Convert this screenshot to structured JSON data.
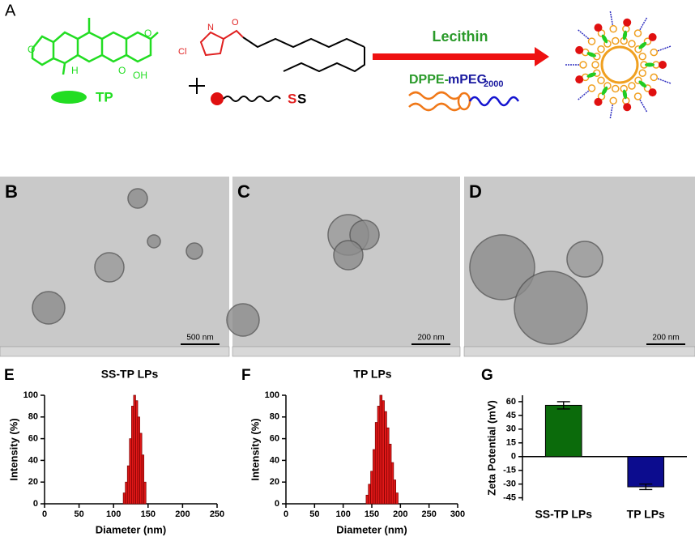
{
  "panel_labels": [
    "A",
    "B",
    "C",
    "D",
    "E",
    "F",
    "G"
  ],
  "scheme": {
    "tp_label": "TP",
    "ss_label": [
      "S",
      "S"
    ],
    "arrow_label": "Lecithin",
    "peg_label": [
      "DPPE-",
      "mPEG",
      "2000"
    ],
    "atom_labels": [
      "O",
      "O",
      "O",
      "H",
      "OH",
      "Cl",
      "N",
      "O"
    ]
  },
  "micrographs": [
    {
      "scale_bar": "500 nm"
    },
    {
      "scale_bar": "200 nm"
    },
    {
      "scale_bar": "200 nm"
    }
  ],
  "chart_data": [
    {
      "type": "histogram",
      "title": "SS-TP LPs",
      "xlabel": "Diameter (nm)",
      "ylabel": "Intensity (%)",
      "color": "#e01818",
      "bins": [
        114,
        117,
        120,
        123,
        126,
        129,
        132,
        135,
        138,
        141,
        144,
        147
      ],
      "values": [
        10,
        20,
        35,
        60,
        90,
        100,
        95,
        80,
        65,
        45,
        20
      ],
      "xlim": [
        0,
        250
      ],
      "xticks": [
        0,
        50,
        100,
        150,
        200,
        250
      ],
      "ylim": [
        0,
        100
      ],
      "yticks": [
        0,
        20,
        40,
        60,
        80,
        100
      ]
    },
    {
      "type": "histogram",
      "title": "TP LPs",
      "xlabel": "Diameter (nm)",
      "ylabel": "Intensity (%)",
      "color": "#e01818",
      "bins": [
        140,
        144,
        148,
        152,
        156,
        160,
        164,
        168,
        172,
        176,
        180,
        184,
        188,
        192,
        196
      ],
      "values": [
        8,
        18,
        30,
        50,
        75,
        90,
        100,
        95,
        85,
        70,
        55,
        38,
        22,
        10
      ],
      "xlim": [
        0,
        300
      ],
      "xticks": [
        0,
        50,
        100,
        150,
        200,
        250,
        300
      ],
      "ylim": [
        0,
        100
      ],
      "yticks": [
        0,
        20,
        40,
        60,
        80,
        100
      ]
    },
    {
      "type": "bar",
      "ylabel": "Zeta Potential (mV)",
      "categories": [
        "SS-TP LPs",
        "TP LPs"
      ],
      "values": [
        56,
        -33
      ],
      "errors": [
        4,
        3
      ],
      "colors": [
        "#0b6b0b",
        "#0c0c8e"
      ],
      "ylim": [
        -48,
        67
      ],
      "yticks": [
        60,
        45,
        30,
        15,
        0,
        -15,
        -30,
        -45
      ]
    }
  ]
}
